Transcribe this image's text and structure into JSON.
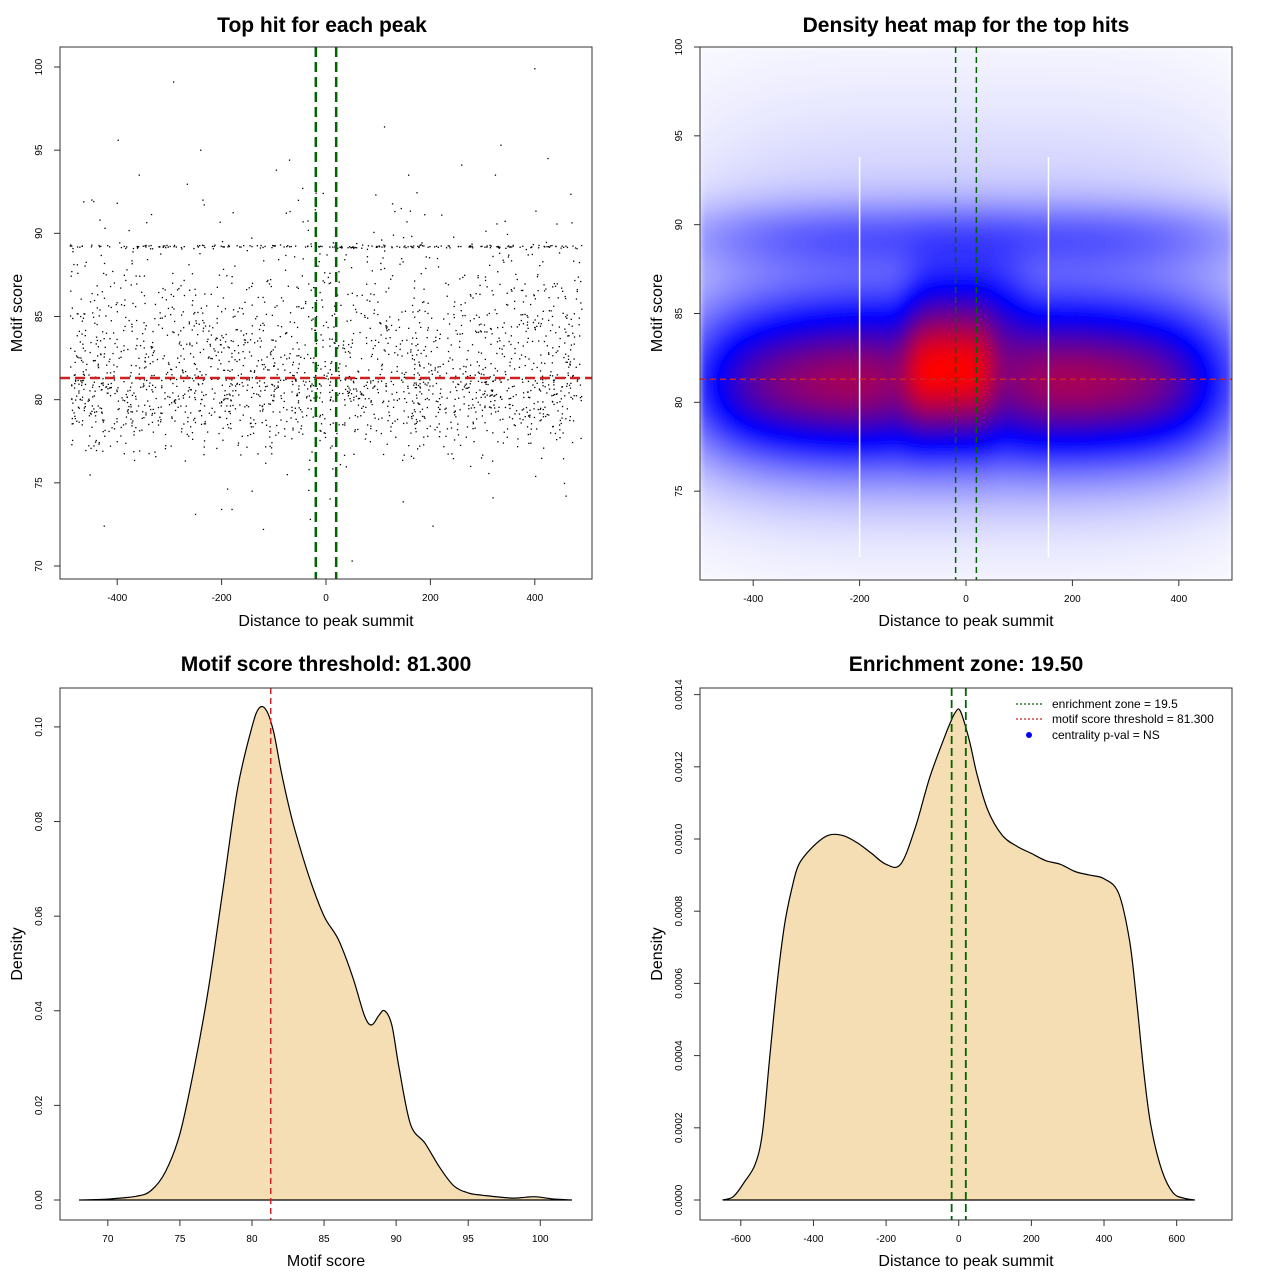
{
  "colors": {
    "points": "#000000",
    "enrichment_line": "#006400",
    "threshold_line": "#cc2222",
    "density_fill": "#f5deb3",
    "heat_low": "#ffffff",
    "heat_mid": "#0000ff",
    "heat_high": "#ff0000"
  },
  "chart_data": [
    {
      "id": "scatter",
      "type": "scatter",
      "title": "Top hit for each peak",
      "xlabel": "Distance to peak summit",
      "ylabel": "Motif score",
      "xlim": [
        -500,
        500
      ],
      "ylim": [
        70,
        100
      ],
      "xticks": [
        -400,
        -200,
        0,
        200,
        400
      ],
      "yticks": [
        70,
        75,
        80,
        85,
        90,
        95,
        100
      ],
      "vlines": [
        -19.5,
        19.5
      ],
      "hline": 81.3,
      "point_count": 2400,
      "outliers": [
        {
          "x": -292,
          "y": 99.1
        },
        {
          "x": 400,
          "y": 99.9
        },
        {
          "x": -398,
          "y": 95.6
        },
        {
          "x": 112,
          "y": 96.4
        },
        {
          "x": 335,
          "y": 95.3
        },
        {
          "x": 425,
          "y": 94.5
        },
        {
          "x": 260,
          "y": 94.1
        },
        {
          "x": -240,
          "y": 95.0
        },
        {
          "x": -95,
          "y": 93.8
        },
        {
          "x": -70,
          "y": 94.4
        },
        {
          "x": -120,
          "y": 72.2
        },
        {
          "x": -425,
          "y": 72.4
        },
        {
          "x": -250,
          "y": 73.1
        },
        {
          "x": 205,
          "y": 72.4
        },
        {
          "x": 50,
          "y": 70.3
        },
        {
          "x": 320,
          "y": 74.1
        },
        {
          "x": 460,
          "y": 74.2
        },
        {
          "x": -200,
          "y": 73.4
        },
        {
          "x": -180,
          "y": 73.4
        },
        {
          "x": -30,
          "y": 72.8
        }
      ]
    },
    {
      "id": "heatmap",
      "type": "heatmap",
      "title": "Density heat map for the top hits",
      "xlabel": "Distance to peak summit",
      "ylabel": "Motif score",
      "xlim": [
        -500,
        500
      ],
      "ylim": [
        70,
        100
      ],
      "xticks": [
        -400,
        -200,
        0,
        200,
        400
      ],
      "yticks": [
        75,
        80,
        85,
        90,
        95,
        100
      ],
      "vlines": [
        -19.5,
        19.5
      ],
      "hline": 81.3,
      "white_lines": [
        -200,
        155
      ],
      "kernels": [
        {
          "x": 0,
          "y": 81.3,
          "sx": 420,
          "sy": 3.2,
          "w": 0.75
        },
        {
          "x": -300,
          "y": 80.8,
          "sx": 160,
          "sy": 2.2,
          "w": 0.3
        },
        {
          "x": 270,
          "y": 80.8,
          "sx": 160,
          "sy": 2.2,
          "w": 0.3
        },
        {
          "x": -30,
          "y": 81.8,
          "sx": 70,
          "sy": 2.4,
          "w": 0.55
        },
        {
          "x": 0,
          "y": 85.5,
          "sx": 90,
          "sy": 2.2,
          "w": 0.18
        },
        {
          "x": 0,
          "y": 89.3,
          "sx": 450,
          "sy": 1.3,
          "w": 0.22
        },
        {
          "x": 0,
          "y": 85.0,
          "sx": 450,
          "sy": 6.5,
          "w": 0.12
        }
      ]
    },
    {
      "id": "score-density",
      "type": "area",
      "title": "Motif score threshold: 81.300",
      "xlabel": "Motif score",
      "ylabel": "Density",
      "xlim": [
        68,
        102.2
      ],
      "ylim": [
        0,
        0.104
      ],
      "xticks": [
        70,
        75,
        80,
        85,
        90,
        95,
        100
      ],
      "yticks": [
        0.0,
        0.02,
        0.04,
        0.06,
        0.08,
        0.1
      ],
      "ytick_labels": [
        "0.00",
        "0.02",
        "0.04",
        "0.06",
        "0.08",
        "0.10"
      ],
      "vline": 81.3,
      "x": [
        68,
        70,
        72,
        73,
        74,
        75,
        76,
        77,
        78,
        79,
        80,
        80.5,
        81,
        81.5,
        82,
        82.5,
        83,
        84,
        85,
        86,
        87,
        87.8,
        88.3,
        88.8,
        89.2,
        89.7,
        90.2,
        91,
        92,
        93,
        94,
        95,
        96,
        98,
        99,
        99.5,
        100,
        101,
        102.2
      ],
      "y": [
        0,
        0.0002,
        0.0008,
        0.002,
        0.006,
        0.014,
        0.028,
        0.045,
        0.066,
        0.087,
        0.1,
        0.104,
        0.1035,
        0.099,
        0.091,
        0.084,
        0.078,
        0.068,
        0.06,
        0.055,
        0.047,
        0.039,
        0.037,
        0.039,
        0.04,
        0.037,
        0.028,
        0.016,
        0.012,
        0.007,
        0.003,
        0.0015,
        0.001,
        0.0004,
        0.0006,
        0.0007,
        0.0006,
        0.0002,
        0
      ]
    },
    {
      "id": "distance-density",
      "type": "area",
      "title": "Enrichment zone: 19.50",
      "xlabel": "Distance to peak summit",
      "ylabel": "Density",
      "xlim": [
        -660,
        700
      ],
      "ylim": [
        0,
        0.00141
      ],
      "xticks": [
        -600,
        -400,
        -200,
        0,
        200,
        400,
        600
      ],
      "yticks": [
        0,
        0.0002,
        0.0004,
        0.0006,
        0.0008,
        0.001,
        0.0012,
        0.0014
      ],
      "ytick_labels": [
        "0.0000",
        "0.0002",
        "0.0004",
        "0.0006",
        "0.0008",
        "0.0010",
        "0.0012",
        "0.0014"
      ],
      "vlines": [
        -19.5,
        19.5
      ],
      "x": [
        -650,
        -620,
        -590,
        -560,
        -540,
        -520,
        -500,
        -480,
        -460,
        -440,
        -400,
        -360,
        -320,
        -280,
        -240,
        -200,
        -160,
        -120,
        -80,
        -40,
        -20,
        -10,
        0,
        10,
        30,
        50,
        80,
        120,
        160,
        200,
        240,
        280,
        320,
        360,
        400,
        440,
        470,
        490,
        510,
        530,
        560,
        590,
        620,
        650
      ],
      "y": [
        0,
        1e-05,
        5e-05,
        0.0001,
        0.00019,
        0.0004,
        0.0006,
        0.00076,
        0.00086,
        0.00093,
        0.00098,
        0.00101,
        0.00101,
        0.00099,
        0.00096,
        0.00093,
        0.00093,
        0.00103,
        0.00117,
        0.00128,
        0.00133,
        0.00135,
        0.00136,
        0.00134,
        0.00127,
        0.00118,
        0.00108,
        0.00101,
        0.00098,
        0.00096,
        0.00094,
        0.00093,
        0.00091,
        0.0009,
        0.00089,
        0.00085,
        0.00072,
        0.00055,
        0.00035,
        0.0002,
        8e-05,
        2e-05,
        5e-06,
        0
      ]
    }
  ],
  "legend": {
    "items": [
      {
        "label": "enrichment zone = 19.5",
        "kind": "dotted-line",
        "color": "#006400"
      },
      {
        "label": "motif score threshold = 81.300",
        "kind": "dotted-line",
        "color": "#cc2222"
      },
      {
        "label": "centrality p-val = NS",
        "kind": "dot",
        "color": "#0000ff"
      }
    ]
  }
}
